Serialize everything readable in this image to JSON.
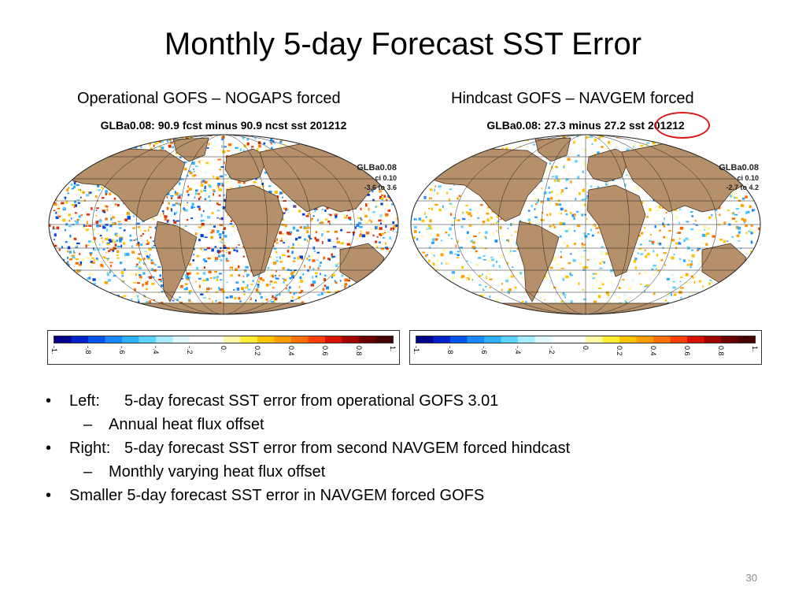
{
  "slide": {
    "title": "Monthly 5-day Forecast SST Error",
    "page_number": "30"
  },
  "panels": [
    {
      "caption": "Operational GOFS – NOGAPS forced",
      "map_header": "GLBa0.08: 90.9 fcst minus 90.9 ncst sst 201212",
      "tag_name": "GLBa0.08",
      "tag_ci": "ci 0.10",
      "tag_range": "-3.6 to 3.6"
    },
    {
      "caption": "Hindcast GOFS – NAVGEM forced",
      "map_header": "GLBa0.08: 27.3 minus 27.2 sst 201212",
      "tag_name": "GLBa0.08",
      "tag_ci": "ci 0.10",
      "tag_range": "-2.7 to 4.2"
    }
  ],
  "colorbar": {
    "ticks": [
      "-1.",
      "-.8",
      "-.6",
      "-.4",
      "-.2",
      "0.",
      "0.2",
      "0.4",
      "0.6",
      "0.8",
      "1."
    ],
    "colors": [
      "#00008b",
      "#0022cc",
      "#0055ee",
      "#1a86ff",
      "#2fb0ff",
      "#5dd2ff",
      "#a6ecff",
      "#e2f9ff",
      "#ffffff",
      "#ffffff",
      "#fff8a8",
      "#ffee33",
      "#ffc400",
      "#ff9e00",
      "#ff7000",
      "#ff3d00",
      "#d81000",
      "#a00000",
      "#6a0000",
      "#480000"
    ]
  },
  "colors": {
    "land": "#b5906b",
    "ocean": "#ffffff",
    "highlight": "#d81818"
  },
  "bullets": [
    {
      "lead": "Left:",
      "text": "5-day forecast SST error from operational GOFS 3.01",
      "sub": "Annual heat flux offset"
    },
    {
      "lead": "Right:",
      "text": "5-day forecast SST error from second NAVGEM forced hindcast",
      "sub": "Monthly varying heat flux offset"
    },
    {
      "lead": "",
      "text": "Smaller 5-day forecast SST error in NAVGEM forced GOFS",
      "sub": ""
    }
  ],
  "glyphs": {
    "bullet": "•",
    "dash": "–"
  }
}
